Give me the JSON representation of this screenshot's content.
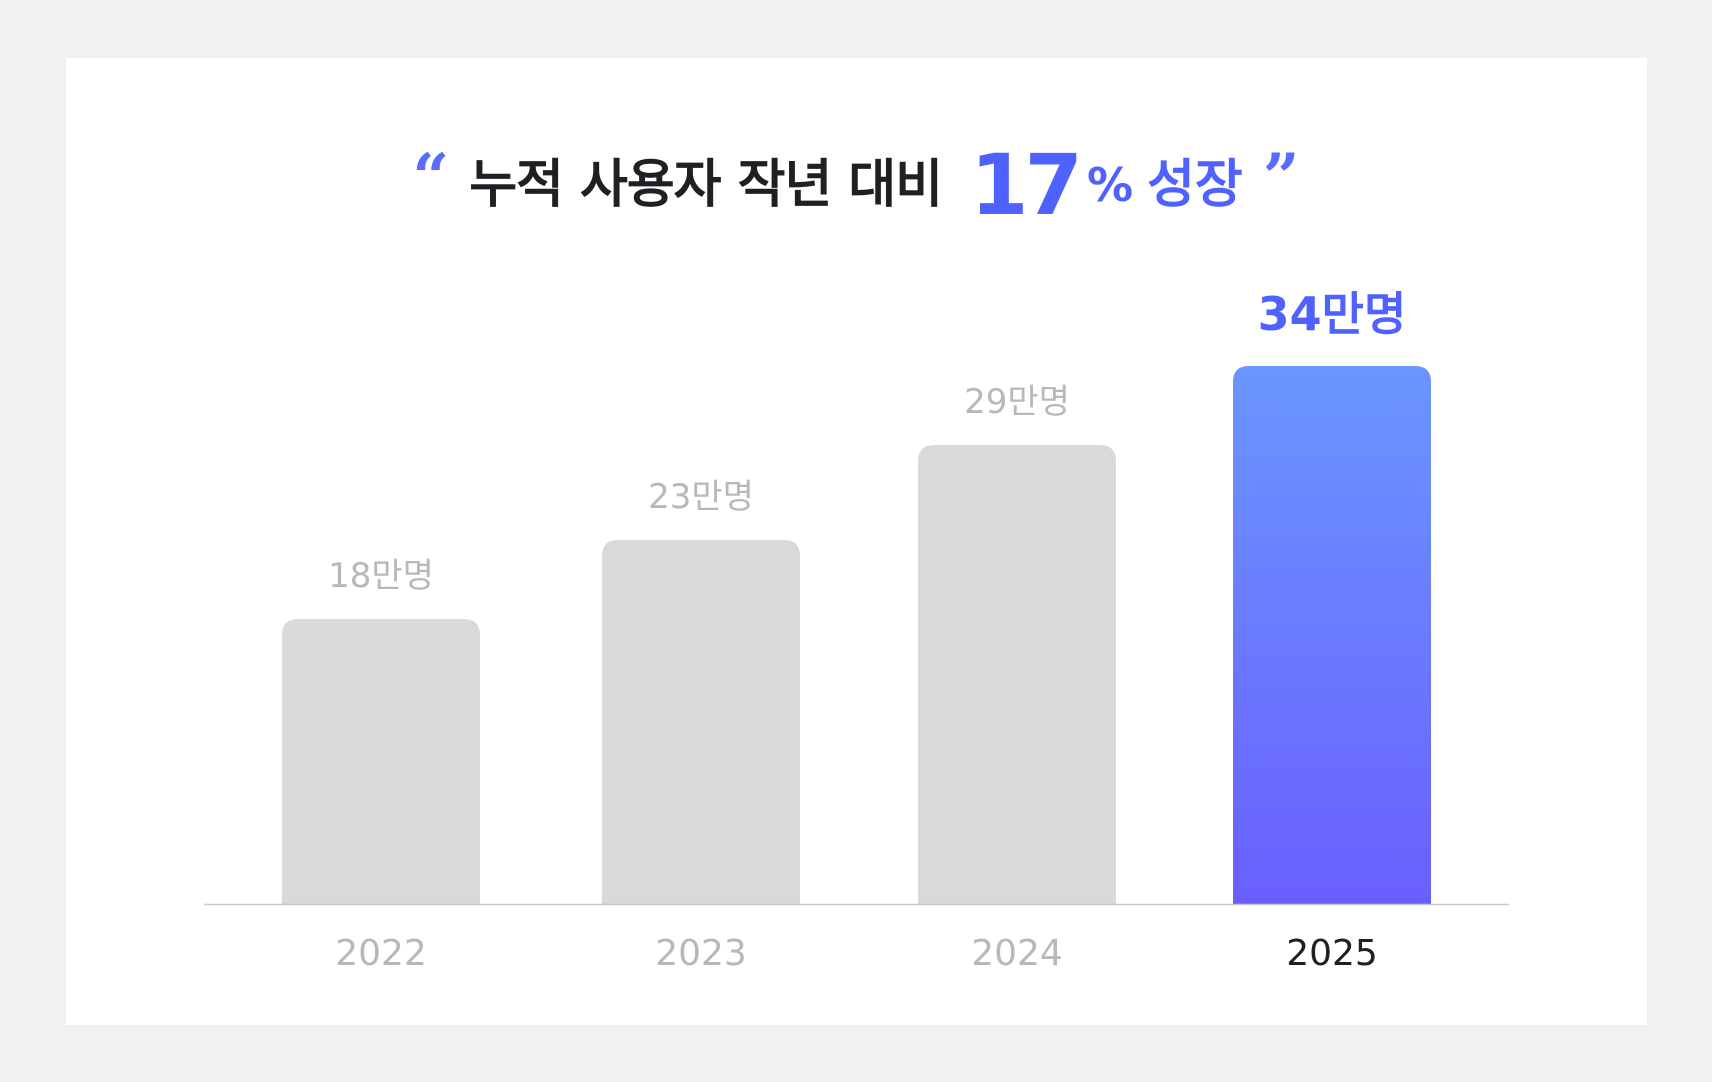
{
  "headline": {
    "quote_open": "“",
    "text": "누적 사용자 작년 대비",
    "percent_value": "17",
    "percent_sign": "%",
    "growth_word": "성장",
    "quote_close": "”"
  },
  "colors": {
    "accent": "#4f62ff",
    "highlight_gradient_top": "#6a96ff",
    "highlight_gradient_bottom": "#6a5fff",
    "bar_muted": "#d9d9d9",
    "label_muted": "#b8b8b8",
    "label_active": "#1f1f24",
    "baseline": "#c8c8c8"
  },
  "chart_data": {
    "type": "bar",
    "categories": [
      "2022",
      "2023",
      "2024",
      "2025"
    ],
    "values": [
      18,
      23,
      29,
      34
    ],
    "value_labels": [
      "18만명",
      "23만명",
      "29만명",
      "34만명"
    ],
    "highlight_index": 3,
    "title": "",
    "xlabel": "",
    "ylabel": "",
    "ylim": [
      0,
      34
    ],
    "grid": false,
    "legend": "none"
  }
}
